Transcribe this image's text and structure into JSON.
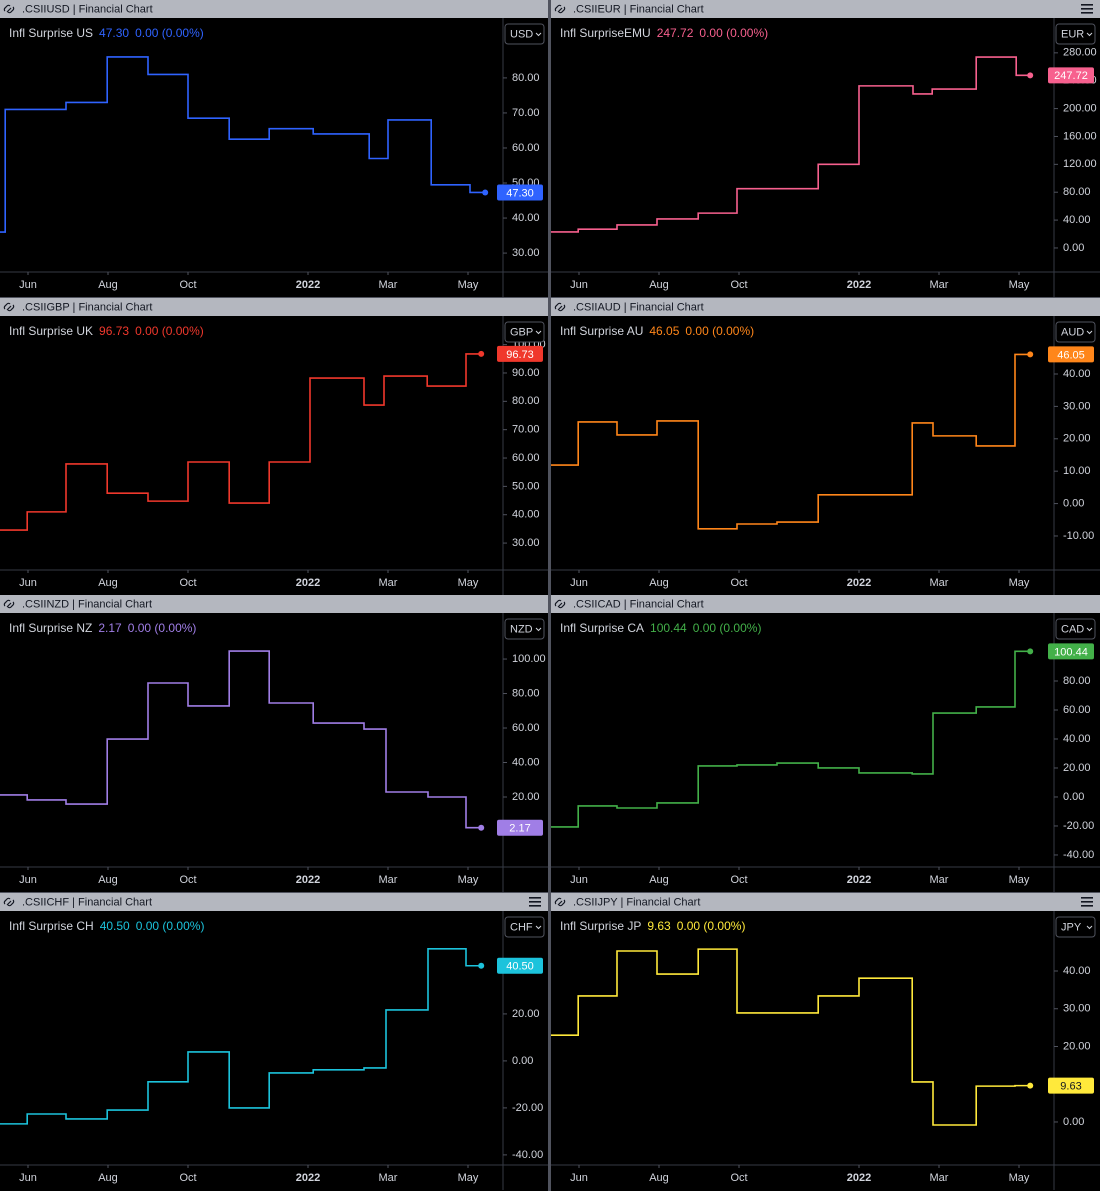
{
  "chart_data": [
    {
      "type": "line",
      "step": true,
      "header": ".CSIIUSD | Financial Chart",
      "currency": "USD",
      "menu_icon": false,
      "change": "0.00 (0.00%)",
      "last_label": "47.30",
      "x": [
        5.3,
        5.43,
        6.95,
        7.98,
        9.0,
        10.0,
        11.03,
        12.03,
        13.13,
        14.53,
        15.0,
        16.08,
        17.05,
        17.43
      ],
      "series": [
        {
          "name": "Infl Surprise US",
          "color": "#2f63ff",
          "values": [
            36,
            71,
            73,
            86,
            81,
            68.5,
            62.5,
            65.5,
            64,
            57,
            68,
            49.5,
            47.3,
            47.3
          ]
        }
      ],
      "xlim": [
        5.3,
        17.8
      ],
      "xticks": [
        {
          "value": 6,
          "label": "Jun"
        },
        {
          "value": 8,
          "label": "Aug"
        },
        {
          "value": 10,
          "label": "Oct"
        },
        {
          "value": 13,
          "label": "2022"
        },
        {
          "value": 15,
          "label": "Mar"
        },
        {
          "value": 17,
          "label": "May"
        }
      ],
      "ylim": [
        24.6,
        97.1
      ],
      "yticks": [
        {
          "value": 30,
          "label": "30.00"
        },
        {
          "value": 40,
          "label": "40.00"
        },
        {
          "value": 50,
          "label": "50.00"
        },
        {
          "value": 60,
          "label": "60.00"
        },
        {
          "value": 70,
          "label": "70.00"
        },
        {
          "value": 80,
          "label": "80.00"
        }
      ],
      "grid": false
    },
    {
      "type": "line",
      "step": true,
      "header": ".CSIIEUR | Financial Chart",
      "currency": "EUR",
      "menu_icon": true,
      "change": "0.00 (0.00%)",
      "last_label": "247.72",
      "x": [
        5.3,
        5.98,
        6.95,
        7.95,
        8.98,
        9.95,
        11.98,
        13.0,
        14.35,
        14.83,
        15.93,
        16.93,
        17.28
      ],
      "series": [
        {
          "name": "Infl SurpriseEMU",
          "color": "#f7608e",
          "values": [
            23,
            27,
            33,
            41.6,
            50,
            85,
            120,
            232.6,
            221,
            228,
            274,
            247.72,
            247.72
          ]
        }
      ],
      "xlim": [
        5.3,
        17.8
      ],
      "xticks": [
        {
          "value": 6,
          "label": "Jun"
        },
        {
          "value": 8,
          "label": "Aug"
        },
        {
          "value": 10,
          "label": "Oct"
        },
        {
          "value": 13,
          "label": "2022"
        },
        {
          "value": 15,
          "label": "Mar"
        },
        {
          "value": 17,
          "label": "May"
        }
      ],
      "ylim": [
        -34.5,
        330
      ],
      "yticks": [
        {
          "value": 0,
          "label": "0.00"
        },
        {
          "value": 40,
          "label": "40.00"
        },
        {
          "value": 80,
          "label": "80.00"
        },
        {
          "value": 120,
          "label": "120.00"
        },
        {
          "value": 160,
          "label": "160.00"
        },
        {
          "value": 200,
          "label": "200.00"
        },
        {
          "value": 240,
          "label": "240.00"
        },
        {
          "value": 280,
          "label": "280.00"
        }
      ],
      "grid": false
    },
    {
      "type": "line",
      "step": true,
      "header": ".CSIIGBP | Financial Chart",
      "currency": "GBP",
      "menu_icon": false,
      "change": "0.00 (0.00%)",
      "last_label": "96.73",
      "x": [
        5.3,
        5.98,
        6.95,
        7.98,
        9.0,
        10.0,
        11.03,
        12.03,
        13.05,
        14.4,
        14.9,
        15.98,
        16.95,
        17.33
      ],
      "series": [
        {
          "name": "Infl Surprise UK",
          "color": "#f0382c",
          "values": [
            34.6,
            41,
            57.9,
            47.6,
            44.8,
            58.6,
            44.1,
            58.6,
            88.2,
            78.7,
            88.9,
            85.4,
            96.73,
            96.73
          ]
        }
      ],
      "xlim": [
        5.3,
        17.8
      ],
      "xticks": [
        {
          "value": 6,
          "label": "Jun"
        },
        {
          "value": 8,
          "label": "Aug"
        },
        {
          "value": 10,
          "label": "Oct"
        },
        {
          "value": 13,
          "label": "2022"
        },
        {
          "value": 15,
          "label": "Mar"
        },
        {
          "value": 17,
          "label": "May"
        }
      ],
      "ylim": [
        20.5,
        110.1
      ],
      "yticks": [
        {
          "value": 30,
          "label": "30.00"
        },
        {
          "value": 40,
          "label": "40.00"
        },
        {
          "value": 50,
          "label": "50.00"
        },
        {
          "value": 60,
          "label": "60.00"
        },
        {
          "value": 70,
          "label": "70.00"
        },
        {
          "value": 80,
          "label": "80.00"
        },
        {
          "value": 90,
          "label": "90.00"
        },
        {
          "value": 100,
          "label": "100.00"
        }
      ],
      "grid": false
    },
    {
      "type": "line",
      "step": true,
      "header": ".CSIIAUD | Financial Chart",
      "currency": "AUD",
      "menu_icon": false,
      "change": "0.00 (0.00%)",
      "last_label": "46.05",
      "x": [
        5.3,
        5.98,
        6.95,
        7.95,
        8.98,
        9.95,
        10.95,
        11.98,
        14.33,
        14.85,
        15.93,
        16.9,
        17.28
      ],
      "series": [
        {
          "name": "Infl Surprise AU",
          "color": "#ff861a",
          "values": [
            11.9,
            25.2,
            21.2,
            25.5,
            -7.8,
            -6.3,
            -5.7,
            2.7,
            24.9,
            20.9,
            17.8,
            46.05,
            46.05
          ]
        }
      ],
      "xlim": [
        5.3,
        17.8
      ],
      "xticks": [
        {
          "value": 6,
          "label": "Jun"
        },
        {
          "value": 8,
          "label": "Aug"
        },
        {
          "value": 10,
          "label": "Oct"
        },
        {
          "value": 13,
          "label": "2022"
        },
        {
          "value": 15,
          "label": "Mar"
        },
        {
          "value": 17,
          "label": "May"
        }
      ],
      "ylim": [
        -20.5,
        57.9
      ],
      "yticks": [
        {
          "value": -10,
          "label": "-10.00"
        },
        {
          "value": 0,
          "label": "0.00"
        },
        {
          "value": 10,
          "label": "10.00"
        },
        {
          "value": 20,
          "label": "20.00"
        },
        {
          "value": 30,
          "label": "30.00"
        },
        {
          "value": 40,
          "label": "40.00"
        }
      ],
      "grid": false
    },
    {
      "type": "line",
      "step": true,
      "header": ".CSIINZD | Financial Chart",
      "currency": "NZD",
      "menu_icon": false,
      "change": "0.00 (0.00%)",
      "last_label": "2.17",
      "x": [
        5.3,
        5.98,
        6.95,
        7.98,
        9.0,
        10.0,
        11.03,
        12.03,
        13.13,
        14.4,
        14.95,
        16.0,
        16.95,
        17.33
      ],
      "series": [
        {
          "name": "Infl Surprise NZ",
          "color": "#a07ee6",
          "values": [
            21.2,
            18.3,
            15.9,
            53.6,
            86.1,
            72.8,
            104.6,
            74.5,
            62.9,
            59.4,
            22.9,
            20,
            2.17,
            2.17
          ]
        }
      ],
      "xlim": [
        5.3,
        17.8
      ],
      "xticks": [
        {
          "value": 6,
          "label": "Jun"
        },
        {
          "value": 8,
          "label": "Aug"
        },
        {
          "value": 10,
          "label": "Oct"
        },
        {
          "value": 13,
          "label": "2022"
        },
        {
          "value": 15,
          "label": "Mar"
        },
        {
          "value": 17,
          "label": "May"
        }
      ],
      "ylim": [
        -20.6,
        126.7
      ],
      "yticks": [
        {
          "value": 20,
          "label": "20.00"
        },
        {
          "value": 40,
          "label": "40.00"
        },
        {
          "value": 60,
          "label": "60.00"
        },
        {
          "value": 80,
          "label": "80.00"
        },
        {
          "value": 100,
          "label": "100.00"
        }
      ],
      "grid": false
    },
    {
      "type": "line",
      "step": true,
      "header": ".CSIICAD | Financial Chart",
      "currency": "CAD",
      "menu_icon": false,
      "change": "0.00 (0.00%)",
      "last_label": "100.44",
      "x": [
        5.3,
        5.98,
        6.95,
        7.95,
        8.98,
        9.95,
        10.95,
        11.98,
        13.0,
        14.33,
        14.85,
        15.93,
        16.9,
        17.28
      ],
      "series": [
        {
          "name": "Infl Surprise CA",
          "color": "#43b049",
          "values": [
            -20.7,
            -6.2,
            -7.6,
            -4.1,
            21.4,
            22.1,
            23.4,
            20,
            16.6,
            15.9,
            57.9,
            62.1,
            100.44,
            100.44
          ]
        }
      ],
      "xlim": [
        5.3,
        17.8
      ],
      "xticks": [
        {
          "value": 6,
          "label": "Jun"
        },
        {
          "value": 8,
          "label": "Aug"
        },
        {
          "value": 10,
          "label": "Oct"
        },
        {
          "value": 13,
          "label": "2022"
        },
        {
          "value": 15,
          "label": "Mar"
        },
        {
          "value": 17,
          "label": "May"
        }
      ],
      "ylim": [
        -48.3,
        126.9
      ],
      "yticks": [
        {
          "value": -40,
          "label": "-40.00"
        },
        {
          "value": -20,
          "label": "-20.00"
        },
        {
          "value": 0,
          "label": "0.00"
        },
        {
          "value": 20,
          "label": "20.00"
        },
        {
          "value": 40,
          "label": "40.00"
        },
        {
          "value": 60,
          "label": "60.00"
        },
        {
          "value": 80,
          "label": "80.00"
        }
      ],
      "grid": false
    },
    {
      "type": "line",
      "step": true,
      "header": ".CSIICHF | Financial Chart",
      "currency": "CHF",
      "menu_icon": true,
      "change": "0.00 (0.00%)",
      "last_label": "40.50",
      "x": [
        5.3,
        5.98,
        6.95,
        7.98,
        9.0,
        10.0,
        11.03,
        12.03,
        13.13,
        14.4,
        14.95,
        16.0,
        16.95,
        17.33
      ],
      "series": [
        {
          "name": "Infl Surprise CH",
          "color": "#1cc3dc",
          "values": [
            -26.8,
            -22.6,
            -24.7,
            -20.9,
            -8.9,
            3.8,
            -20,
            -5.1,
            -3.8,
            -3,
            21.7,
            47.7,
            40.5,
            40.5
          ]
        }
      ],
      "xlim": [
        5.3,
        17.8
      ],
      "xticks": [
        {
          "value": 6,
          "label": "Jun"
        },
        {
          "value": 8,
          "label": "Aug"
        },
        {
          "value": 10,
          "label": "Oct"
        },
        {
          "value": 13,
          "label": "2022"
        },
        {
          "value": 15,
          "label": "Mar"
        },
        {
          "value": 17,
          "label": "May"
        }
      ],
      "ylim": [
        -44.3,
        63.8
      ],
      "yticks": [
        {
          "value": -40,
          "label": "-40.00"
        },
        {
          "value": -20,
          "label": "-20.00"
        },
        {
          "value": 0,
          "label": "0.00"
        },
        {
          "value": 20,
          "label": "20.00"
        }
      ],
      "grid": false
    },
    {
      "type": "line",
      "step": true,
      "header": ".CSIIJPY | Financial Chart",
      "currency": "JPY",
      "menu_icon": true,
      "change": "0.00 (0.00%)",
      "last_label": "9.63",
      "x": [
        5.3,
        5.98,
        6.95,
        7.95,
        8.98,
        9.95,
        11.98,
        13.0,
        14.33,
        14.85,
        15.93,
        16.9,
        17.28
      ],
      "series": [
        {
          "name": "Infl Surprise JP",
          "color": "#ffe93b",
          "values": [
            23,
            33.4,
            45.3,
            39.2,
            45.8,
            28.9,
            33.4,
            38.1,
            10.6,
            -0.8,
            9.5,
            9.63,
            9.63
          ]
        }
      ],
      "xlim": [
        5.3,
        17.8
      ],
      "xticks": [
        {
          "value": 6,
          "label": "Jun"
        },
        {
          "value": 8,
          "label": "Aug"
        },
        {
          "value": 10,
          "label": "Oct"
        },
        {
          "value": 13,
          "label": "2022"
        },
        {
          "value": 15,
          "label": "Mar"
        },
        {
          "value": 17,
          "label": "May"
        }
      ],
      "ylim": [
        -11.4,
        55.9
      ],
      "yticks": [
        {
          "value": 0,
          "label": "0.00"
        },
        {
          "value": 20,
          "label": "20.00"
        },
        {
          "value": 30,
          "label": "30.00"
        },
        {
          "value": 40,
          "label": "40.00"
        }
      ],
      "grid": false
    }
  ]
}
